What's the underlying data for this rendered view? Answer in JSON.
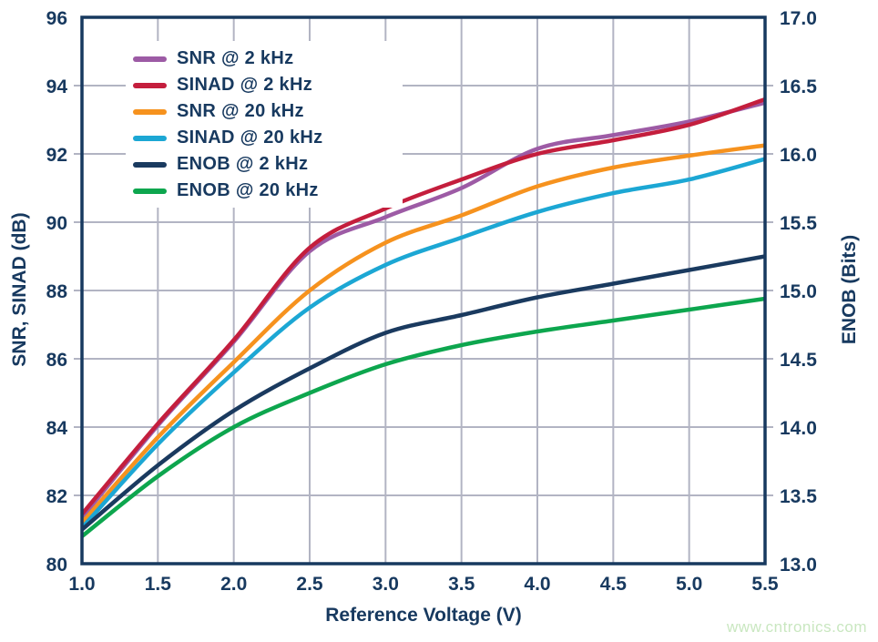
{
  "watermark": "www.cntronics.com",
  "colors": {
    "text": "#17395F",
    "frame": "#17395F",
    "grid": "#B2B4C3",
    "background": "#FFFFFF",
    "watermark": "#C9E7C0"
  },
  "chart_data": {
    "type": "line",
    "title": "",
    "xlabel": "Reference Voltage (V)",
    "ylabel_left": "SNR, SINAD (dB)",
    "ylabel_right": "ENOB (Bits)",
    "x_range": [
      1.0,
      5.5
    ],
    "y_left_range": [
      80,
      96
    ],
    "y_right_range": [
      13.0,
      17.0
    ],
    "x_ticks": [
      "1.0",
      "1.5",
      "2.0",
      "2.5",
      "3.0",
      "3.5",
      "4.0",
      "4.5",
      "5.0",
      "5.5"
    ],
    "y_left_ticks": [
      "96",
      "94",
      "92",
      "90",
      "88",
      "86",
      "84",
      "82",
      "80"
    ],
    "y_right_ticks": [
      "17.0",
      "16.5",
      "16.0",
      "15.5",
      "15.0",
      "14.5",
      "14.0",
      "13.5",
      "13.0"
    ],
    "grid": true,
    "legend_position": "top-left",
    "x": [
      1.0,
      1.5,
      2.0,
      2.5,
      3.0,
      3.5,
      4.0,
      4.5,
      5.0,
      5.5
    ],
    "series": [
      {
        "name": "SNR @ 2 kHz",
        "color": "#9D5BA5",
        "axis": "left",
        "unit": "dB",
        "values": [
          81.35,
          84.05,
          86.5,
          89.15,
          90.15,
          91.0,
          92.15,
          92.55,
          92.95,
          93.5
        ]
      },
      {
        "name": "SINAD @ 2 kHz",
        "color": "#C41E3D",
        "axis": "left",
        "unit": "dB",
        "values": [
          81.45,
          84.1,
          86.55,
          89.25,
          90.4,
          91.25,
          92.0,
          92.4,
          92.85,
          93.6
        ]
      },
      {
        "name": "SNR @ 20 kHz",
        "color": "#F6921E",
        "axis": "left",
        "unit": "dB",
        "values": [
          81.2,
          83.7,
          85.9,
          88.0,
          89.4,
          90.2,
          91.05,
          91.6,
          91.95,
          92.25
        ]
      },
      {
        "name": "SINAD @ 20 kHz",
        "color": "#1CA7D4",
        "axis": "left",
        "unit": "dB",
        "values": [
          81.05,
          83.5,
          85.6,
          87.5,
          88.75,
          89.55,
          90.3,
          90.85,
          91.25,
          91.85
        ]
      },
      {
        "name": "ENOB @ 2 kHz",
        "color": "#1A3A5F",
        "axis": "right",
        "unit": "Bits",
        "values": [
          13.25,
          13.72,
          14.12,
          14.43,
          14.69,
          14.82,
          14.95,
          15.05,
          15.15,
          15.25
        ]
      },
      {
        "name": "ENOB @ 20 kHz",
        "color": "#0DA64E",
        "axis": "right",
        "unit": "Bits",
        "values": [
          13.2,
          13.64,
          14.0,
          14.25,
          14.46,
          14.6,
          14.7,
          14.78,
          14.86,
          14.94
        ]
      }
    ]
  }
}
